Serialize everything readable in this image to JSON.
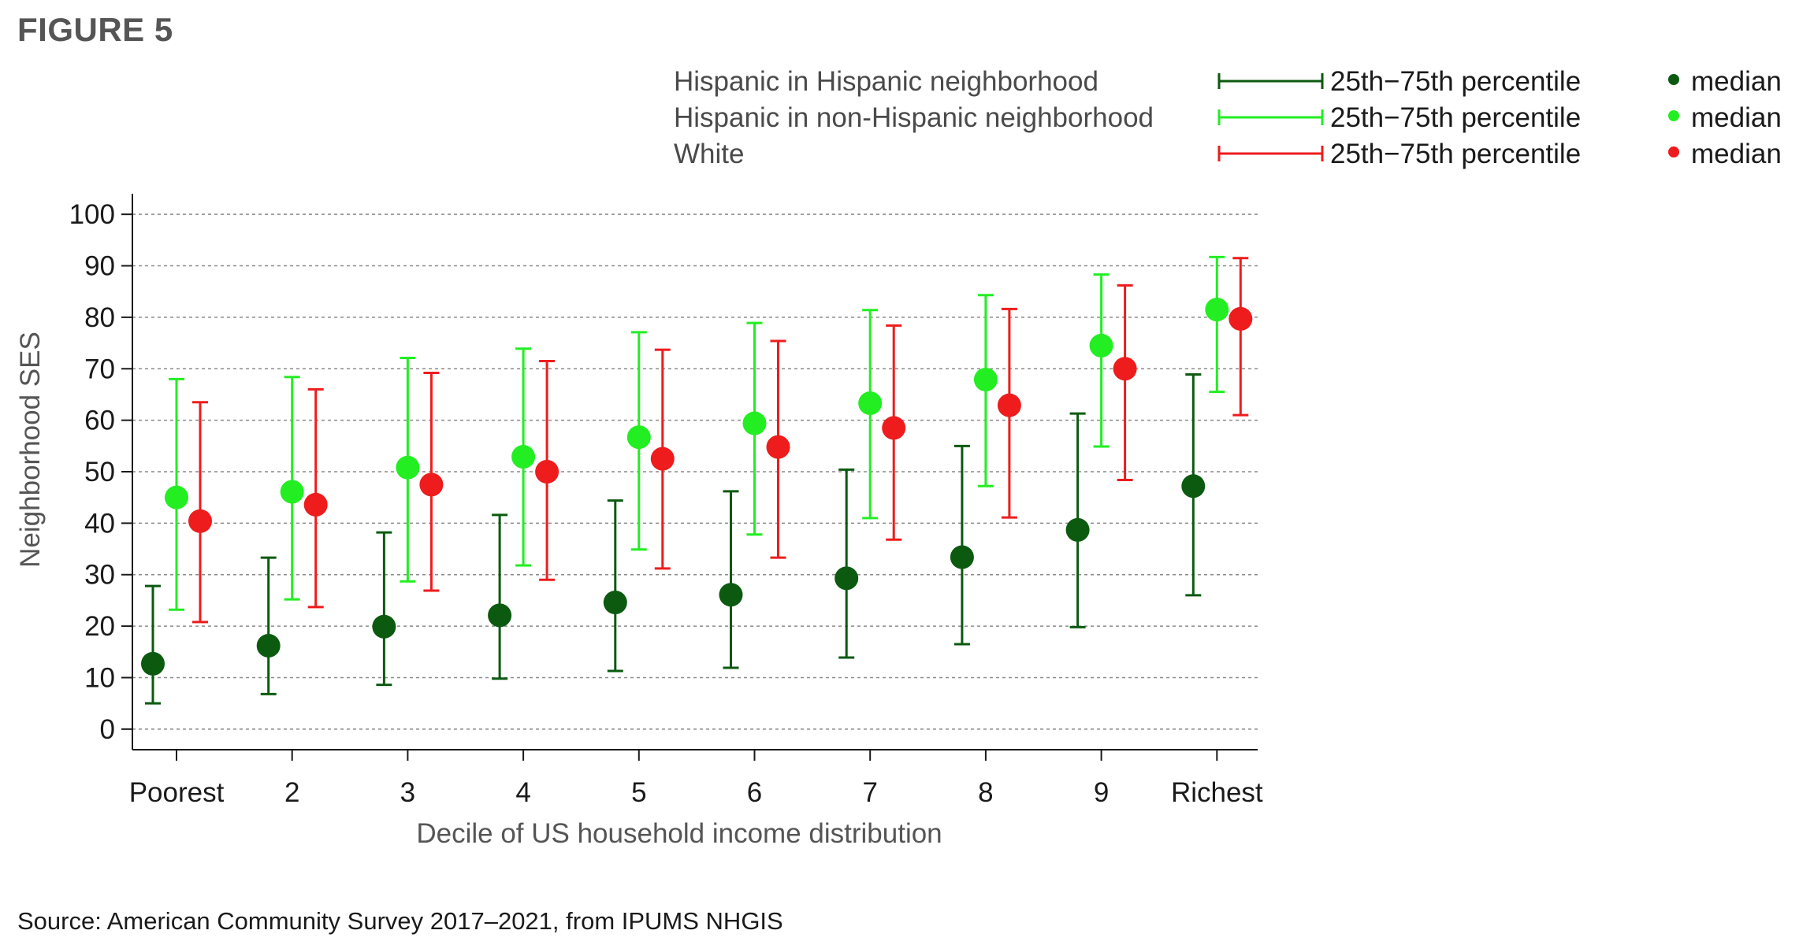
{
  "figure_label": "FIGURE 5",
  "source": "Source: American Community Survey 2017–2021, from IPUMS NHGIS",
  "legend": {
    "rows": [
      {
        "group": "Hispanic in Hispanic neighborhood",
        "range_label": "25th−75th percentile",
        "median_label": "median",
        "color": "#0b5a10"
      },
      {
        "group": "Hispanic in non-Hispanic neighborhood",
        "range_label": "25th−75th percentile",
        "median_label": "median",
        "color": "#22ee22"
      },
      {
        "group": "White",
        "range_label": "25th−75th percentile",
        "median_label": "median",
        "color": "#ee1c1c"
      }
    ]
  },
  "chart_data": {
    "type": "scatter",
    "subtype": "median points with 25th-75th percentile range bars",
    "xlabel": "Decile of US household income distribution",
    "ylabel": "Neighborhood SES",
    "categories": [
      "Poorest",
      "2",
      "3",
      "4",
      "5",
      "6",
      "7",
      "8",
      "9",
      "Richest"
    ],
    "ylim": [
      -4,
      104
    ],
    "yticks": [
      0,
      10,
      20,
      30,
      40,
      50,
      60,
      70,
      80,
      90,
      100
    ],
    "grid": "horizontal dashed",
    "legend_position": "top-right",
    "series": [
      {
        "name": "Hispanic in Hispanic neighborhood",
        "color": "#0b5a10",
        "median": [
          12.7,
          16.2,
          19.9,
          22.1,
          24.6,
          26.1,
          29.3,
          33.4,
          38.7,
          47.2
        ],
        "p25": [
          5,
          6.8,
          8.6,
          9.8,
          11.3,
          11.9,
          13.9,
          16.5,
          19.8,
          26
        ],
        "p75": [
          27.8,
          33.3,
          38.2,
          41.6,
          44.4,
          46.2,
          50.4,
          55,
          61.3,
          68.9
        ]
      },
      {
        "name": "Hispanic in non-Hispanic neighborhood",
        "color": "#22ee22",
        "median": [
          45,
          46.1,
          50.8,
          52.9,
          56.7,
          59.4,
          63.3,
          67.9,
          74.5,
          81.5
        ],
        "p25": [
          23.2,
          25.2,
          28.7,
          31.8,
          34.9,
          37.8,
          41,
          47.2,
          54.9,
          65.5
        ],
        "p75": [
          68,
          68.4,
          72.1,
          73.9,
          77.1,
          78.9,
          81.4,
          84.3,
          88.3,
          91.7
        ]
      },
      {
        "name": "White",
        "color": "#ee1c1c",
        "median": [
          40.4,
          43.6,
          47.5,
          50,
          52.5,
          54.8,
          58.5,
          62.9,
          70,
          79.7
        ],
        "p25": [
          20.8,
          23.7,
          26.9,
          29,
          31.2,
          33.3,
          36.8,
          41.1,
          48.4,
          61
        ],
        "p75": [
          63.5,
          66,
          69.2,
          71.5,
          73.7,
          75.4,
          78.4,
          81.6,
          86.2,
          91.5
        ]
      }
    ]
  }
}
